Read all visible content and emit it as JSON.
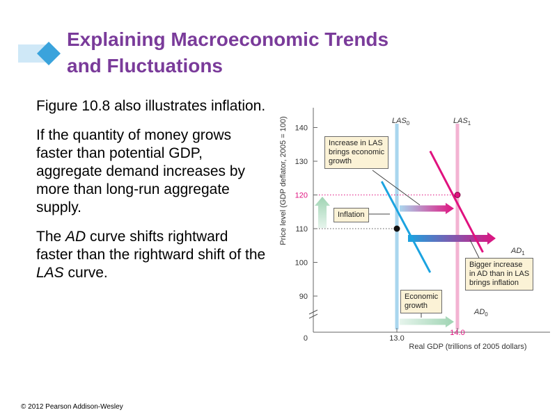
{
  "slide": {
    "title_line1": "Explaining Macroeconomic Trends",
    "title_line2": "and Fluctuations",
    "para1": "Figure 10.8 also illustrates inflation.",
    "para2": "If the quantity of money grows faster than potential GDP, aggregate demand increases by more than long-run aggregate supply.",
    "para3_part1": "The ",
    "para3_ad": "AD",
    "para3_part2": " curve shifts rightward faster than the rightward shift of the ",
    "para3_las": "LAS",
    "para3_part3": " curve.",
    "footer": "© 2012 Pearson Addison-Wesley"
  },
  "colors": {
    "title": "#7a3b9a",
    "title_deco": "#3aa3dc",
    "ad0": "#1ba3e0",
    "ad1": "#e0127f",
    "las0": "#a9d6ee",
    "las1": "#f3b3d2",
    "annotation_bg": "#fbf2d6",
    "arrow_green": "#b7dfc7",
    "highlight_label": "#e0127f"
  },
  "annotations": {
    "increase_las": [
      "Increase in LAS",
      "brings economic",
      "growth"
    ],
    "inflation": "Inflation",
    "bigger_increase": [
      "Bigger increase",
      "in AD  than in LAS",
      "brings inflation"
    ],
    "economic_growth": [
      "Economic",
      "growth"
    ]
  },
  "chart_data": {
    "type": "line",
    "ylabel": "Price level (GDP deflator, 2005 = 100)",
    "xlabel": "Real GDP (trillions of 2005 dollars)",
    "y_ticks": [
      90,
      100,
      110,
      120,
      130,
      140
    ],
    "y_zero_label": "0",
    "x_ticks": [
      13.0,
      14.0
    ],
    "x_tick_labels": [
      "13.0",
      "14.0"
    ],
    "ylim": [
      85,
      143
    ],
    "xlim": [
      12.4,
      14.6
    ],
    "axis_break": true,
    "series": [
      {
        "name": "LAS0",
        "label_main": "LAS",
        "label_sub": "0",
        "kind": "vertical",
        "x": 13.0
      },
      {
        "name": "LAS1",
        "label_main": "LAS",
        "label_sub": "1",
        "kind": "vertical",
        "x": 14.0
      },
      {
        "name": "AD0",
        "label_main": "AD",
        "label_sub": "0",
        "kind": "line",
        "points": [
          [
            12.75,
            124
          ],
          [
            13.55,
            97
          ]
        ]
      },
      {
        "name": "AD1",
        "label_main": "AD",
        "label_sub": "1",
        "kind": "line",
        "points": [
          [
            13.55,
            133
          ],
          [
            14.42,
            103
          ]
        ]
      }
    ],
    "equilibria": [
      {
        "x": 13.0,
        "y": 110
      },
      {
        "x": 14.0,
        "y": 120
      }
    ],
    "grid": false
  }
}
